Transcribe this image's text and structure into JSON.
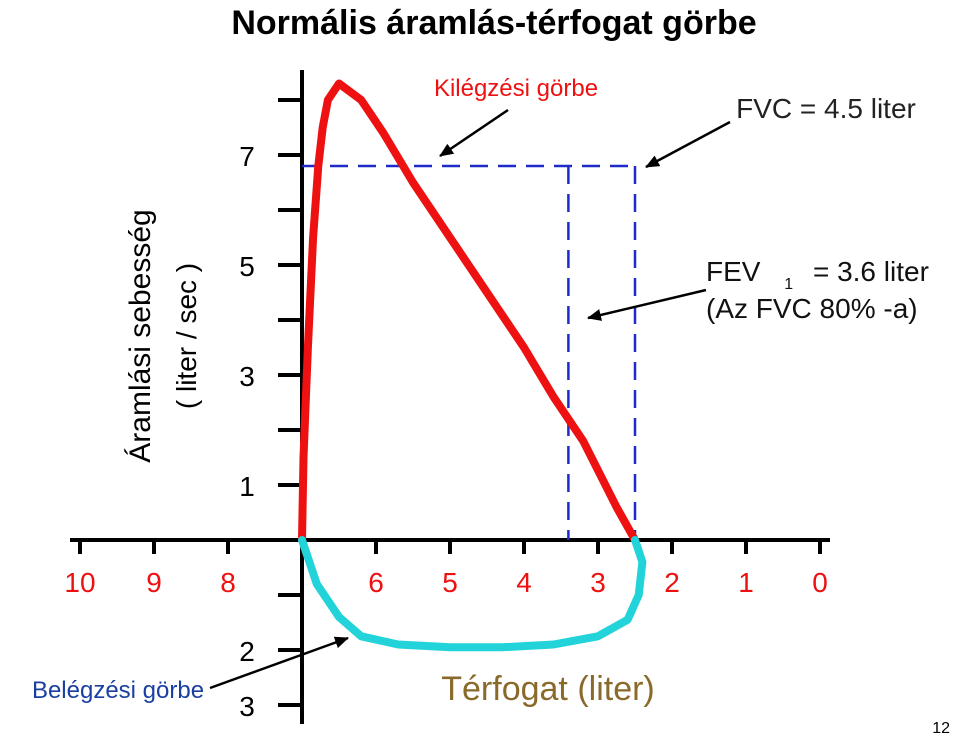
{
  "title": "Normális áramlás-térfogat görbe",
  "y_axis_label_line1": "Áramlási sebesség",
  "y_axis_label_line2": "( liter / sec )",
  "x_axis_label": "Térfogat (liter)",
  "labels": {
    "expiration_curve": "Kilégzési görbe",
    "inspiration_curve": "Belégzési görbe",
    "fvc": "FVC = 4.5 liter",
    "fev_prefix": "FEV",
    "fev_sub": "1",
    "fev_value": "= 3.6 liter",
    "fev_note": "(Az FVC 80% -a)"
  },
  "page_number": "12",
  "colors": {
    "expiration": "#ee1111",
    "inspiration": "#22d3d9",
    "dashed": "#1f2bc9",
    "axis": "#000000",
    "fvc_text": "#222222",
    "inspiration_label": "#1a3fa0",
    "x_axis_label": "#8a6a2a"
  },
  "chart_data": {
    "type": "line",
    "x_ticks": [
      "10",
      "9",
      "8",
      "6",
      "5",
      "4",
      "3",
      "2",
      "1",
      "0"
    ],
    "y_ticks_positive": [
      "7",
      "5",
      "3",
      "1"
    ],
    "y_ticks_negative": [
      "2",
      "3"
    ],
    "x_reversed": true,
    "series": [
      {
        "name": "Kilégzési görbe",
        "x": [
          7.0,
          6.98,
          6.92,
          6.85,
          6.78,
          6.72,
          6.65,
          6.5,
          6.2,
          5.9,
          5.5,
          5.0,
          4.5,
          4.0,
          3.6,
          3.2,
          2.75,
          2.5
        ],
        "y": [
          0.0,
          1.5,
          3.5,
          5.5,
          6.8,
          7.5,
          8.0,
          8.3,
          8.0,
          7.4,
          6.5,
          5.5,
          4.5,
          3.5,
          2.6,
          1.8,
          0.6,
          0.0
        ]
      },
      {
        "name": "Belégzési görbe",
        "x": [
          7.0,
          6.8,
          6.5,
          6.2,
          5.7,
          5.0,
          4.3,
          3.6,
          3.0,
          2.6,
          2.45,
          2.4,
          2.5
        ],
        "y": [
          0.0,
          -0.8,
          -1.4,
          -1.75,
          -1.9,
          -1.95,
          -1.95,
          -1.9,
          -1.75,
          -1.45,
          -1.0,
          -0.4,
          0.0
        ]
      }
    ],
    "reference_lines": {
      "fvc_flow": 6.8,
      "fvc_volume": 2.5,
      "fev1_volume": 3.4
    }
  }
}
